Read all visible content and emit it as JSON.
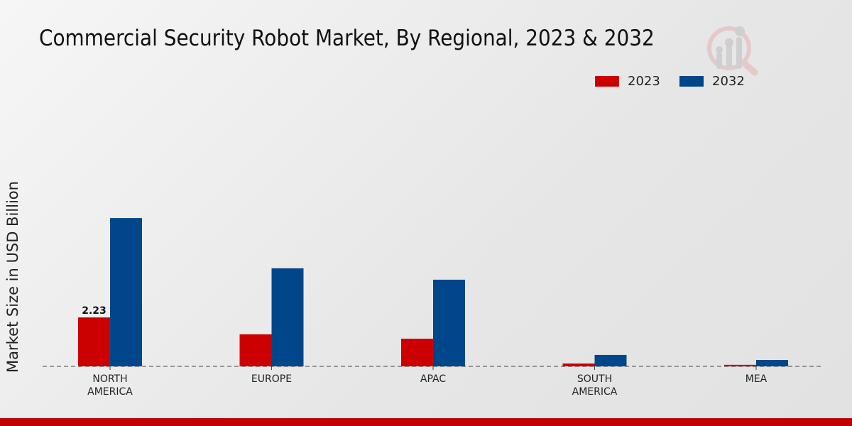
{
  "chart_data": {
    "type": "bar",
    "title": "Commercial Security Robot Market, By Regional, 2023 & 2032",
    "xlabel": "",
    "ylabel": "Market Size in USD Billion",
    "categories": [
      "NORTH\nAMERICA",
      "EUROPE",
      "APAC",
      "SOUTH\nAMERICA",
      "MEA"
    ],
    "series": [
      {
        "name": "2023",
        "color": "#cc0000",
        "values": [
          2.23,
          1.46,
          1.26,
          0.13,
          0.07
        ]
      },
      {
        "name": "2032",
        "color": "#00468b",
        "values": [
          6.76,
          4.47,
          3.95,
          0.52,
          0.29
        ]
      }
    ],
    "data_labels": [
      {
        "series": "2023",
        "category_index": 0,
        "text": "2.23"
      }
    ],
    "ylim": [
      0,
      8
    ],
    "grid": false,
    "legend": "top-right"
  }
}
